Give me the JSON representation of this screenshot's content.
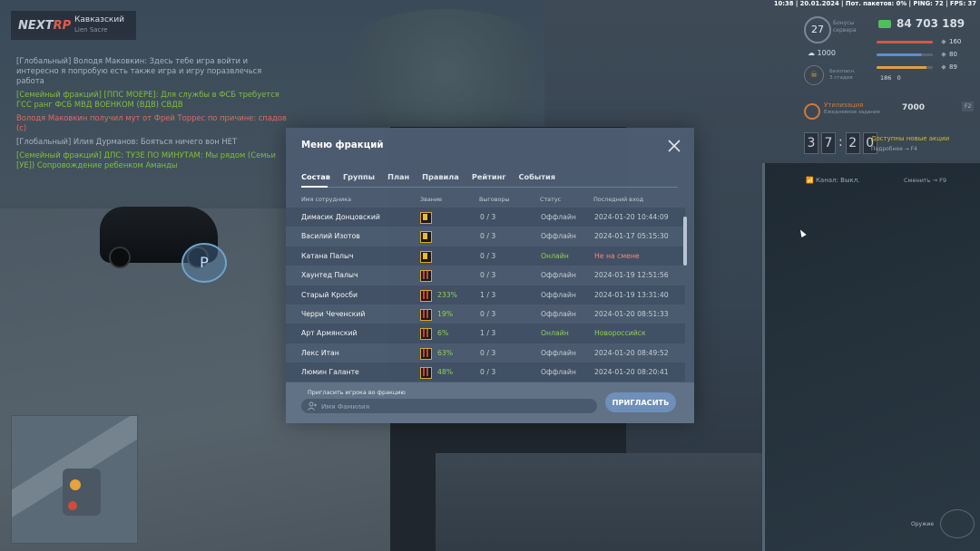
{
  "status_bar": "10:38 | 20.01.2024 | Пот. пакетов: 0% | PING: 72 | FPS: 37",
  "brand": {
    "logo_a": "NEXT",
    "logo_b": "RP",
    "server": "Кавказский",
    "server_sub": "Lien Sacre"
  },
  "chat": [
    {
      "text": "[Глобальный] Володя Маковкин: Здесь тебе игра войти и интересно я попробую есть также игра и игру поразвлечься работа",
      "tone": "grey"
    },
    {
      "text": "[Семейный фракций] [ППС МОЕРЕ]: Для службы в ФСБ требуется ГСС ранг ФСБ МВД ВОЕНКОМ (ВДВ) СВДВ",
      "tone": "green"
    },
    {
      "text": "Володя Маковкин получил мут от Фрей Торрес по причине: спадов (с)",
      "tone": "red"
    },
    {
      "text": "[Глобальный] Илия Дурманов: Бояться ничего вон НЕТ",
      "tone": "grey"
    },
    {
      "text": "[Семейный фракций] ДПС: ТУЗЕ ПО МИНУТАМ: Мы рядом (Семьи [УЕ]) Сопровождение ребенком Аманды",
      "tone": "green"
    }
  ],
  "hud": {
    "level": "27",
    "level_label": "Бонусы\nсервера",
    "money": "84 703 189",
    "cash": "1000",
    "bars": [
      {
        "icon": "heart-icon",
        "value": "160",
        "color": "#d9534f",
        "fill": 1.0
      },
      {
        "icon": "armor-icon",
        "value": "80",
        "color": "#5b8fd4",
        "fill": 0.8
      },
      {
        "icon": "food-icon",
        "value": "89",
        "color": "#e0a040",
        "fill": 0.89
      }
    ],
    "small_vals": "186   0",
    "status_ring_label": "Безопасн.\nЗ стадия",
    "util_title": "Утилизация",
    "util_sub": "Ежедневное задание",
    "util_value": "7000",
    "util_badge": "F2",
    "timer": [
      "3",
      "7",
      "2",
      "0"
    ],
    "bonus_title": "Доступны новые акции",
    "bonus_sub": "Подробнее → F4",
    "channel": "Канал: Выкл.",
    "channel_right": "Сменить → F9"
  },
  "modal": {
    "title": "Меню фракций",
    "tabs": [
      "Состав",
      "Группы",
      "План",
      "Правила",
      "Рейтинг",
      "События"
    ],
    "active_tab": 0,
    "columns": [
      "Имя сотрудника",
      "Звание",
      "Выговоры",
      "Статус",
      "Последний вход"
    ],
    "rows": [
      {
        "name": "Димасик Донцовский",
        "rank_icon": "star-rank-icon",
        "pct": "",
        "warns": "0 / 3",
        "status": "Оффлайн",
        "online": false,
        "last": "2024-01-20 10:44:09",
        "last_tone": "plain"
      },
      {
        "name": "Василий Изотов",
        "rank_icon": "star-rank-icon",
        "pct": "",
        "warns": "0 / 3",
        "status": "Оффлайн",
        "online": false,
        "last": "2024-01-17 05:15:30",
        "last_tone": "plain"
      },
      {
        "name": "Катана Палыч",
        "rank_icon": "star-rank-icon",
        "pct": "",
        "warns": "0 / 3",
        "status": "Онлайн",
        "online": true,
        "last": "Не на смене",
        "last_tone": "red"
      },
      {
        "name": "Хаунтед Палыч",
        "rank_icon": "stripe-rank-icon",
        "pct": "",
        "warns": "0 / 3",
        "status": "Оффлайн",
        "online": false,
        "last": "2024-01-19 12:51:56",
        "last_tone": "plain"
      },
      {
        "name": "Старый Кросби",
        "rank_icon": "stripe-rank-icon",
        "pct": "233%",
        "warns": "1 / 3",
        "status": "Оффлайн",
        "online": false,
        "last": "2024-01-19 13:31:40",
        "last_tone": "plain"
      },
      {
        "name": "Черри Чеченский",
        "rank_icon": "stripe-rank-icon",
        "pct": "19%",
        "warns": "0 / 3",
        "status": "Оффлайн",
        "online": false,
        "last": "2024-01-20 08:51:33",
        "last_tone": "plain"
      },
      {
        "name": "Арт Армянский",
        "rank_icon": "stripe-rank-icon",
        "pct": "6%",
        "warns": "1 / 3",
        "status": "Онлайн",
        "online": true,
        "last": "Новороссийск",
        "last_tone": "green"
      },
      {
        "name": "Лекс Итан",
        "rank_icon": "stripe-rank-icon",
        "pct": "63%",
        "warns": "0 / 3",
        "status": "Оффлайн",
        "online": false,
        "last": "2024-01-20 08:49:52",
        "last_tone": "plain"
      },
      {
        "name": "Люмин Галанте",
        "rank_icon": "stripe-rank-icon",
        "pct": "48%",
        "warns": "0 / 3",
        "status": "Оффлайн",
        "online": false,
        "last": "2024-01-20 08:20:41",
        "last_tone": "plain"
      }
    ],
    "invite_label": "Пригласить игрока во фракцию",
    "invite_placeholder": "Имя Фамилия",
    "invite_button": "ПРИГЛАСИТЬ"
  },
  "weapon_label": "Оружие"
}
